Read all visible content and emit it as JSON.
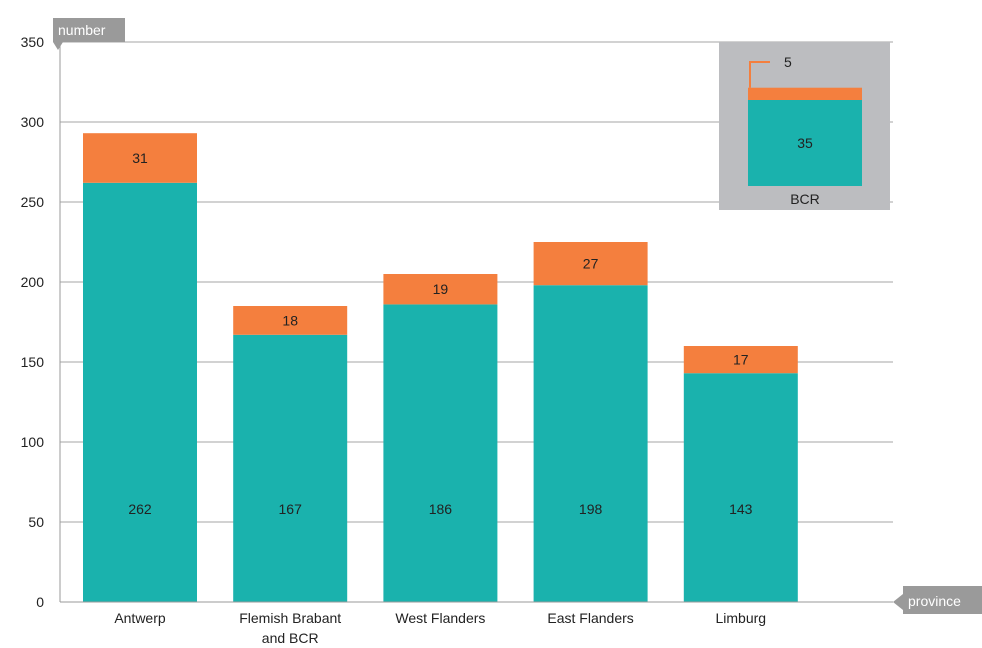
{
  "chart_data": {
    "type": "bar",
    "stacked": true,
    "y_axis_label": "number",
    "x_axis_label": "province",
    "ylim": [
      0,
      350
    ],
    "yticks": [
      "0",
      "50",
      "100",
      "150",
      "200",
      "250",
      "300",
      "350"
    ],
    "categories": [
      [
        "Antwerp"
      ],
      [
        "Flemish Brabant",
        "and BCR"
      ],
      [
        "West Flanders"
      ],
      [
        "East Flanders"
      ],
      [
        "Limburg"
      ]
    ],
    "series": [
      {
        "color": "#1ab2ad",
        "values": [
          262,
          167,
          186,
          198,
          143
        ]
      },
      {
        "color": "#f47f3e",
        "values": [
          31,
          18,
          19,
          27,
          17
        ]
      }
    ],
    "inset": {
      "label": "BCR",
      "values": [
        35,
        5
      ],
      "background": "#bcbdc0"
    },
    "grid": true
  }
}
